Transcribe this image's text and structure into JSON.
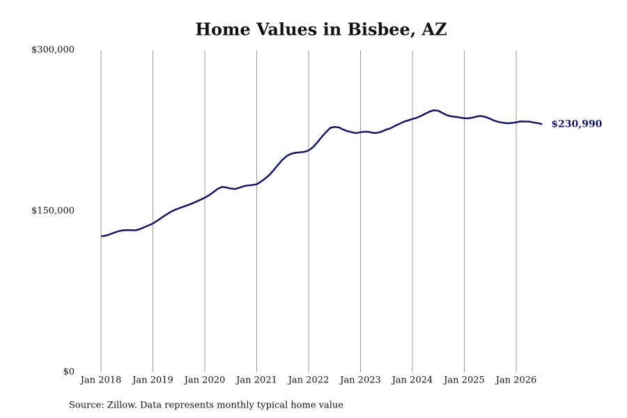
{
  "chart_data": {
    "type": "line",
    "title": "Home Values in Bisbee, AZ",
    "source": "Source: Zillow. Data represents monthly typical home value",
    "x": [
      "2018-01",
      "2018-02",
      "2018-03",
      "2018-04",
      "2018-05",
      "2018-06",
      "2018-07",
      "2018-08",
      "2018-09",
      "2018-10",
      "2018-11",
      "2018-12",
      "2019-01",
      "2019-02",
      "2019-03",
      "2019-04",
      "2019-05",
      "2019-06",
      "2019-07",
      "2019-08",
      "2019-09",
      "2019-10",
      "2019-11",
      "2019-12",
      "2020-01",
      "2020-02",
      "2020-03",
      "2020-04",
      "2020-05",
      "2020-06",
      "2020-07",
      "2020-08",
      "2020-09",
      "2020-10",
      "2020-11",
      "2020-12",
      "2021-01",
      "2021-02",
      "2021-03",
      "2021-04",
      "2021-05",
      "2021-06",
      "2021-07",
      "2021-08",
      "2021-09",
      "2021-10",
      "2021-11",
      "2021-12",
      "2022-01",
      "2022-02",
      "2022-03",
      "2022-04",
      "2022-05",
      "2022-06",
      "2022-07",
      "2022-08",
      "2022-09",
      "2022-10",
      "2022-11",
      "2022-12",
      "2023-01",
      "2023-02",
      "2023-03",
      "2023-04",
      "2023-05",
      "2023-06",
      "2023-07",
      "2023-08",
      "2023-09",
      "2023-10",
      "2023-11",
      "2023-12",
      "2024-01",
      "2024-02",
      "2024-03",
      "2024-04",
      "2024-05",
      "2024-06",
      "2024-07",
      "2024-08",
      "2024-09",
      "2024-10",
      "2024-11",
      "2024-12",
      "2025-01",
      "2025-02",
      "2025-03",
      "2025-04",
      "2025-05",
      "2025-06",
      "2025-07",
      "2025-08",
      "2025-09",
      "2025-10",
      "2025-11",
      "2025-12",
      "2026-01",
      "2026-02",
      "2026-03",
      "2026-04",
      "2026-05",
      "2026-06",
      "2026-07"
    ],
    "series": [
      {
        "name": "Home value",
        "color": "#15155e",
        "values": [
          126500,
          127000,
          128300,
          129800,
          131200,
          132000,
          132300,
          132200,
          132100,
          133200,
          135000,
          136600,
          138500,
          141000,
          143800,
          146500,
          149000,
          151000,
          152600,
          154000,
          155500,
          157000,
          158800,
          160600,
          162500,
          164800,
          167800,
          170800,
          172600,
          172000,
          171000,
          170600,
          171800,
          173200,
          173900,
          174300,
          175000,
          177500,
          180500,
          184000,
          188500,
          193500,
          198000,
          201500,
          203500,
          204400,
          204800,
          205200,
          206500,
          209500,
          214000,
          219000,
          223500,
          227500,
          228500,
          228000,
          226000,
          224500,
          223500,
          222700,
          223500,
          224000,
          223800,
          222800,
          223000,
          224300,
          226000,
          227300,
          229500,
          231300,
          233300,
          234500,
          235800,
          237000,
          238700,
          240800,
          242800,
          244000,
          243500,
          241300,
          239300,
          238300,
          237800,
          237200,
          236500,
          236500,
          237200,
          238300,
          238600,
          237600,
          236000,
          234200,
          233000,
          232300,
          231800,
          232200,
          232700,
          233600,
          233400,
          233400,
          232600,
          232000,
          230990
        ],
        "value_labels": [
          null,
          null,
          null,
          null,
          null,
          null,
          null,
          null,
          null,
          null,
          null,
          null,
          null,
          null,
          null,
          null,
          null,
          null,
          null,
          null,
          null,
          null,
          null,
          null,
          null,
          null,
          null,
          null,
          null,
          null,
          null,
          null,
          null,
          null,
          null,
          null,
          null,
          null,
          null,
          null,
          null,
          null,
          null,
          null,
          null,
          null,
          null,
          null,
          null,
          null,
          null,
          null,
          null,
          null,
          null,
          null,
          null,
          null,
          null,
          null,
          null,
          null,
          null,
          null,
          null,
          null,
          null,
          null,
          null,
          null,
          null,
          null,
          null,
          null,
          null,
          null,
          null,
          null,
          null,
          null,
          null,
          null,
          null,
          null,
          null,
          null,
          null,
          null,
          null,
          null,
          null,
          null,
          null,
          null,
          null,
          null,
          null,
          null,
          null,
          null,
          null,
          null,
          "$230,990"
        ]
      }
    ],
    "xticks": [
      {
        "value": "2018-01",
        "label": "Jan 2018"
      },
      {
        "value": "2019-01",
        "label": "Jan 2019"
      },
      {
        "value": "2020-01",
        "label": "Jan 2020"
      },
      {
        "value": "2021-01",
        "label": "Jan 2021"
      },
      {
        "value": "2022-01",
        "label": "Jan 2022"
      },
      {
        "value": "2023-01",
        "label": "Jan 2023"
      },
      {
        "value": "2024-01",
        "label": "Jan 2024"
      },
      {
        "value": "2025-01",
        "label": "Jan 2025"
      },
      {
        "value": "2026-01",
        "label": "Jan 2026"
      }
    ],
    "ylim": [
      0,
      300000
    ],
    "yticks": [
      {
        "value": 0,
        "label": "$0"
      },
      {
        "value": 150000,
        "label": "$150,000"
      },
      {
        "value": 300000,
        "label": "$300,000"
      }
    ],
    "grid": "x"
  }
}
